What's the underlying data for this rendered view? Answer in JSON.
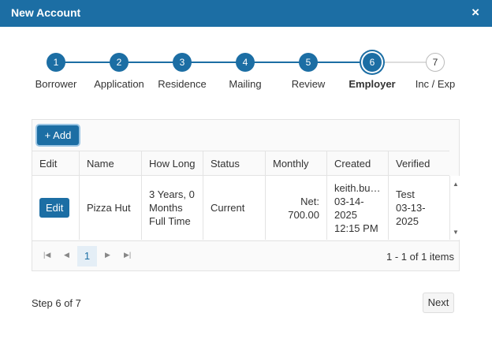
{
  "dialog": {
    "title": "New Account",
    "close": "×"
  },
  "steps": [
    {
      "number": 1,
      "label": "Borrower"
    },
    {
      "number": 2,
      "label": "Application"
    },
    {
      "number": 3,
      "label": "Residence"
    },
    {
      "number": 4,
      "label": "Mailing"
    },
    {
      "number": 5,
      "label": "Review"
    },
    {
      "number": 6,
      "label": "Employer"
    },
    {
      "number": 7,
      "label": "Inc / Exp"
    }
  ],
  "toolbar": {
    "add": "Add"
  },
  "table": {
    "columns": [
      "Edit",
      "Name",
      "How Long",
      "Status",
      "Monthly",
      "Created",
      "Verified"
    ],
    "rows": [
      {
        "edit": "Edit",
        "name": "Pizza Hut",
        "how_long": [
          "3 Years, 0",
          "Months",
          "Full Time"
        ],
        "status": "Current",
        "monthly": [
          "Net:",
          "700.00"
        ],
        "created": [
          "keith.bu…",
          "03-14-",
          "2025",
          "12:15 PM"
        ],
        "verified": [
          "Test",
          "03-13-",
          "2025"
        ]
      }
    ]
  },
  "pager": {
    "page": 1,
    "summary": "1 - 1 of 1 items"
  },
  "footer": {
    "step_text": "Step 6 of 7",
    "next": "Next"
  }
}
